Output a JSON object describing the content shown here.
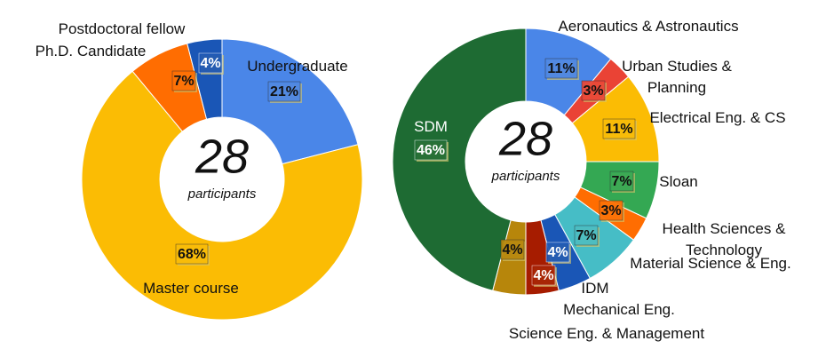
{
  "chart_data": [
    {
      "type": "pie",
      "total": "28",
      "total_label": "participants",
      "categories": [
        "Undergraduate",
        "Master course",
        "Ph.D. Candidate",
        "Postdoctoral fellow"
      ],
      "values": [
        21,
        68,
        7,
        4
      ],
      "value_labels": [
        "21%",
        "68%",
        "7%",
        "4%"
      ],
      "colors": [
        "#4a86e8",
        "#fbbc04",
        "#ff6d01",
        "#1a56b6"
      ]
    },
    {
      "type": "pie",
      "total": "28",
      "total_label": "participants",
      "categories": [
        "Aeronautics & Astronautics",
        "Urban Studies & Planning",
        "Electrical Eng. & CS",
        "Sloan",
        "Health Sciences & Technology",
        "Material Science & Eng.",
        "IDM",
        "Mechanical Eng.",
        "Science Eng. & Management",
        "SDM"
      ],
      "values": [
        11,
        3,
        11,
        7,
        3,
        7,
        4,
        4,
        4,
        46
      ],
      "value_labels": [
        "11%",
        "3%",
        "11%",
        "7%",
        "3%",
        "7%",
        "4%",
        "4%",
        "4%",
        "46%"
      ],
      "colors": [
        "#4a86e8",
        "#ea4335",
        "#fbbc04",
        "#34a853",
        "#ff6d01",
        "#46bdc6",
        "#1a56b6",
        "#a61c00",
        "#b7860b",
        "#1e6b33"
      ]
    }
  ]
}
